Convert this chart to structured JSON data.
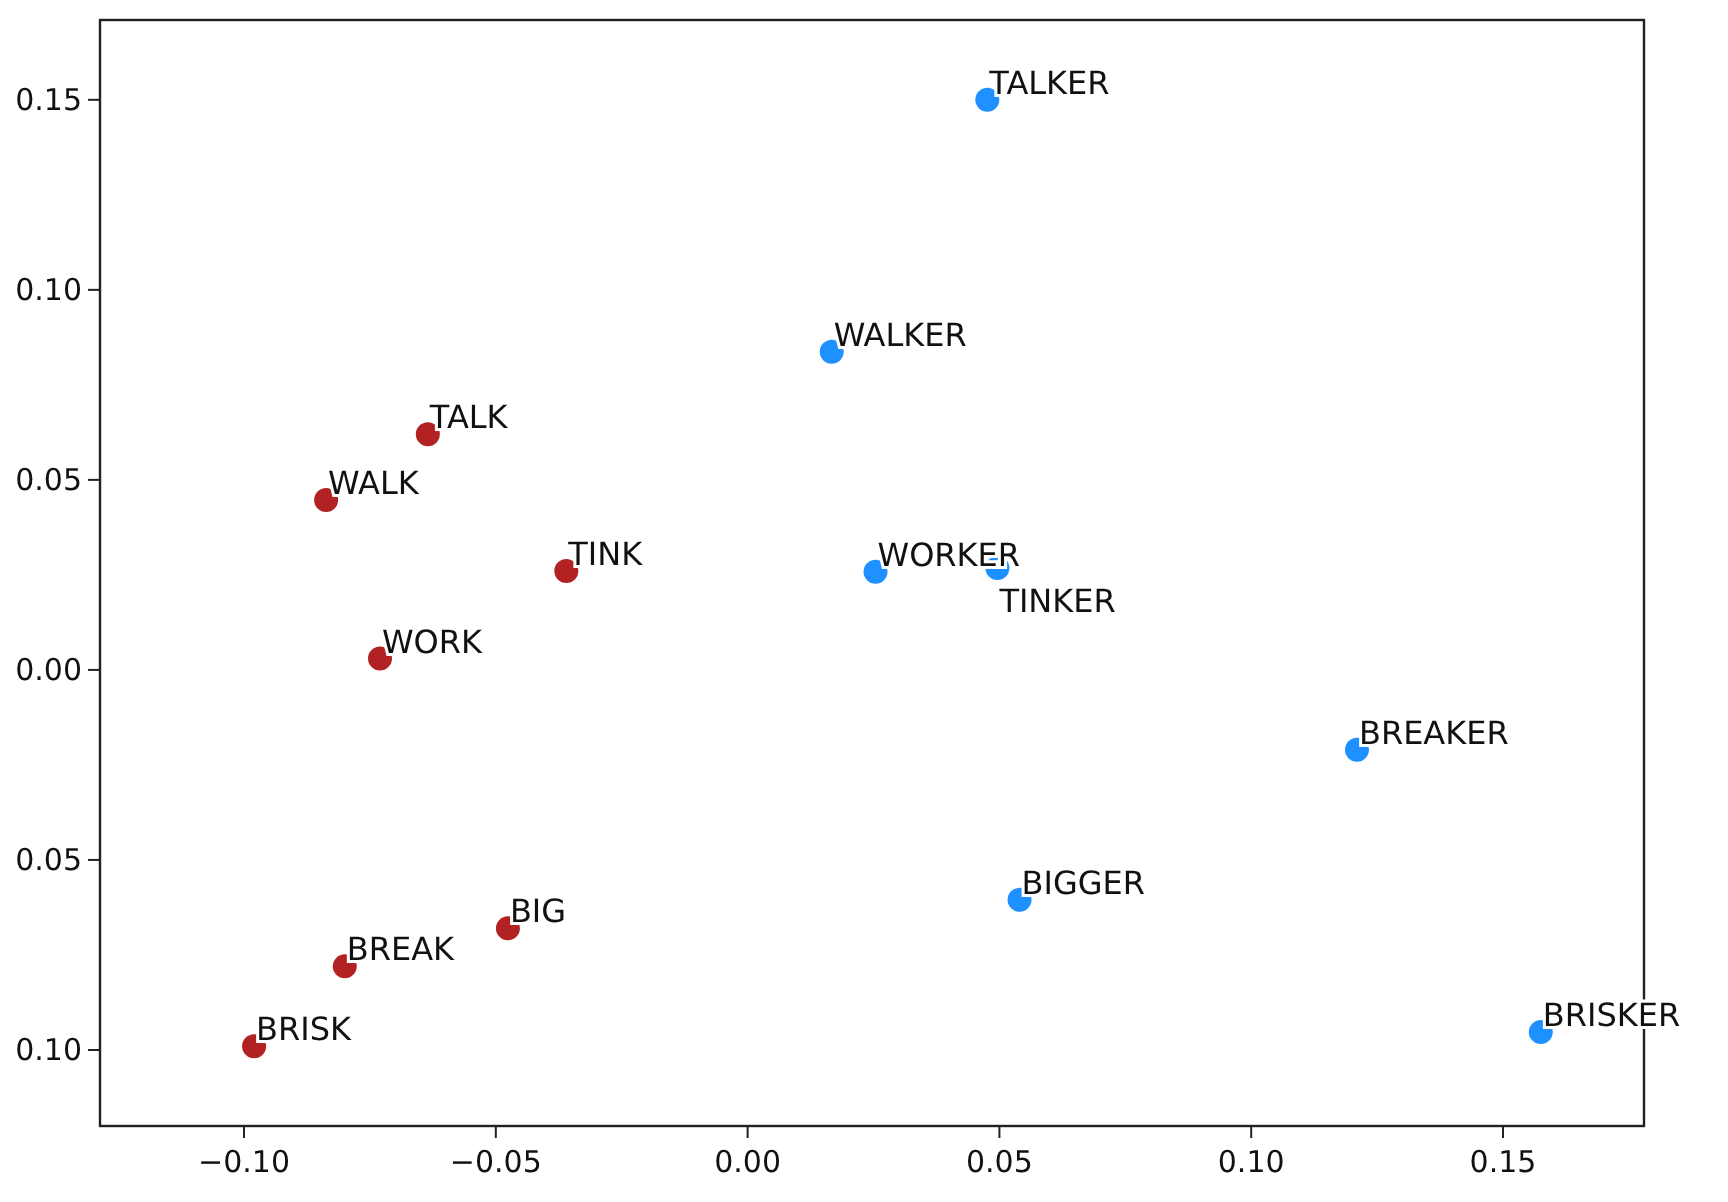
{
  "chart_data": {
    "type": "scatter",
    "xlim": [
      -0.1286,
      0.178
    ],
    "ylim": [
      -0.12,
      0.171
    ],
    "xticks": [
      {
        "value": -0.1,
        "label": "−0.10"
      },
      {
        "value": -0.05,
        "label": "−0.05"
      },
      {
        "value": 0,
        "label": "0.00"
      },
      {
        "value": 0.05,
        "label": "0.05"
      },
      {
        "value": 0.1,
        "label": "0.10"
      },
      {
        "value": 0.15,
        "label": "0.15"
      }
    ],
    "yticks": [
      {
        "value": -0.1,
        "label": "0.10"
      },
      {
        "value": -0.05,
        "label": "0.05"
      },
      {
        "value": 0,
        "label": "0.00"
      },
      {
        "value": 0.05,
        "label": "0.05"
      },
      {
        "value": 0.1,
        "label": "0.10"
      },
      {
        "value": 0.15,
        "label": "0.15"
      }
    ],
    "grid": false,
    "marker": "circle",
    "series": [
      {
        "color": "#b22222",
        "x": [
          -0.0635,
          -0.0837,
          -0.036,
          -0.073,
          -0.0476,
          -0.08,
          -0.098
        ],
        "values": [
          0.062,
          0.0447,
          0.026,
          0.003,
          -0.068,
          -0.078,
          -0.099
        ]
      },
      {
        "color": "#1e90ff",
        "x": [
          0.0476,
          0.0167,
          0.0254,
          0.0496,
          0.121,
          0.054,
          0.1575
        ],
        "values": [
          0.15,
          0.0837,
          0.0258,
          0.0268,
          -0.021,
          -0.0605,
          -0.0953
        ]
      }
    ],
    "annotations": [
      {
        "text": "TALK",
        "x": -0.0635,
        "y": 0.062
      },
      {
        "text": "WALK",
        "x": -0.0837,
        "y": 0.0447
      },
      {
        "text": "TINK",
        "x": -0.036,
        "y": 0.026
      },
      {
        "text": "WORK",
        "x": -0.073,
        "y": 0.003
      },
      {
        "text": "BIG",
        "x": -0.0476,
        "y": -0.068
      },
      {
        "text": "BREAK",
        "x": -0.08,
        "y": -0.078
      },
      {
        "text": "BRISK",
        "x": -0.098,
        "y": -0.099
      },
      {
        "text": "TALKER",
        "x": 0.0476,
        "y": 0.15
      },
      {
        "text": "WALKER",
        "x": 0.0167,
        "y": 0.0837
      },
      {
        "text": "WORKER",
        "x": 0.0254,
        "y": 0.0258
      },
      {
        "text": "TINKER",
        "x": 0.0496,
        "y": 0.0268
      },
      {
        "text": "BREAKER",
        "x": 0.121,
        "y": -0.021
      },
      {
        "text": "BIGGER",
        "x": 0.054,
        "y": -0.0605
      },
      {
        "text": "BRISKER",
        "x": 0.1575,
        "y": -0.0953
      }
    ]
  }
}
